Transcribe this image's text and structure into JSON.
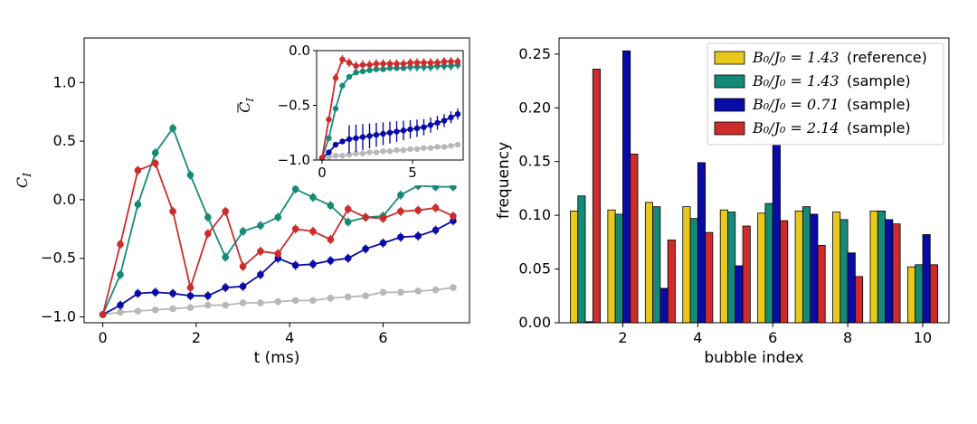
{
  "chart_data": [
    {
      "type": "line",
      "xlabel": "t (ms)",
      "ylabel": "C",
      "ylabel_sub": "I",
      "xlim": [
        -0.4,
        7.85
      ],
      "ylim": [
        -1.05,
        1.38
      ],
      "xticks": [
        "0",
        "2",
        "4",
        "6"
      ],
      "yticks": [
        "−1.0",
        "−0.5",
        "0.0",
        "0.5",
        "1.0"
      ],
      "series": [
        {
          "color": "#b8b8b8",
          "x": [
            0,
            0.375,
            0.75,
            1.125,
            1.5,
            1.875,
            2.25,
            2.625,
            3.0,
            3.375,
            3.75,
            4.125,
            4.5,
            4.875,
            5.25,
            5.625,
            6.0,
            6.375,
            6.75,
            7.125,
            7.5
          ],
          "y": [
            -0.98,
            -0.96,
            -0.95,
            -0.94,
            -0.93,
            -0.92,
            -0.9,
            -0.9,
            -0.88,
            -0.88,
            -0.87,
            -0.86,
            -0.86,
            -0.84,
            -0.83,
            -0.82,
            -0.79,
            -0.79,
            -0.78,
            -0.77,
            -0.75
          ]
        },
        {
          "color": "#0a0aa8",
          "x": [
            0,
            0.375,
            0.75,
            1.125,
            1.5,
            1.875,
            2.25,
            2.625,
            3.0,
            3.375,
            3.75,
            4.125,
            4.5,
            4.875,
            5.25,
            5.625,
            6.0,
            6.375,
            6.75,
            7.125,
            7.5
          ],
          "y": [
            -0.98,
            -0.9,
            -0.8,
            -0.79,
            -0.8,
            -0.82,
            -0.82,
            -0.75,
            -0.74,
            -0.64,
            -0.5,
            -0.56,
            -0.55,
            -0.52,
            -0.5,
            -0.42,
            -0.37,
            -0.32,
            -0.31,
            -0.26,
            -0.18
          ]
        },
        {
          "color": "#168a78",
          "x": [
            0,
            0.375,
            0.75,
            1.125,
            1.5,
            1.875,
            2.25,
            2.625,
            3.0,
            3.375,
            3.75,
            4.125,
            4.5,
            4.875,
            5.25,
            5.625,
            6.0,
            6.375,
            6.75,
            7.125,
            7.5
          ],
          "y": [
            -0.98,
            -0.64,
            -0.04,
            0.4,
            0.61,
            0.21,
            -0.15,
            -0.49,
            -0.27,
            -0.22,
            -0.15,
            0.09,
            0.02,
            -0.05,
            -0.19,
            -0.15,
            -0.14,
            0.04,
            0.12,
            0.11,
            0.11
          ]
        },
        {
          "color": "#cc2c2c",
          "x": [
            0,
            0.375,
            0.75,
            1.125,
            1.5,
            1.875,
            2.25,
            2.625,
            3.0,
            3.375,
            3.75,
            4.125,
            4.5,
            4.875,
            5.25,
            5.625,
            6.0,
            6.375,
            6.75,
            7.125,
            7.5
          ],
          "y": [
            -0.98,
            -0.38,
            0.25,
            0.31,
            -0.1,
            -0.75,
            -0.29,
            -0.1,
            -0.57,
            -0.44,
            -0.46,
            -0.25,
            -0.27,
            -0.34,
            -0.08,
            -0.15,
            -0.16,
            -0.1,
            -0.09,
            -0.07,
            -0.14
          ]
        }
      ]
    },
    {
      "type": "line",
      "ylabel": "C",
      "ylabel_sub": "I",
      "xlim": [
        -0.3,
        7.8
      ],
      "ylim": [
        -1.0,
        0.0
      ],
      "xticks": [
        "0",
        "5"
      ],
      "yticks": [
        "0.0",
        "−0.5",
        "−1.0"
      ],
      "series": [
        {
          "color": "#b8b8b8",
          "x": [
            0,
            0.375,
            0.75,
            1.125,
            1.5,
            1.875,
            2.25,
            2.625,
            3.0,
            3.375,
            3.75,
            4.125,
            4.5,
            4.875,
            5.25,
            5.625,
            6.0,
            6.375,
            6.75,
            7.125,
            7.5
          ],
          "y": [
            -0.98,
            -0.97,
            -0.96,
            -0.96,
            -0.95,
            -0.94,
            -0.94,
            -0.93,
            -0.93,
            -0.92,
            -0.92,
            -0.91,
            -0.91,
            -0.9,
            -0.9,
            -0.89,
            -0.89,
            -0.88,
            -0.88,
            -0.87,
            -0.86
          ]
        },
        {
          "color": "#0a0aa8",
          "x": [
            0,
            0.375,
            0.75,
            1.125,
            1.5,
            1.875,
            2.25,
            2.625,
            3.0,
            3.375,
            3.75,
            4.125,
            4.5,
            4.875,
            5.25,
            5.625,
            6.0,
            6.375,
            6.75,
            7.125,
            7.5
          ],
          "y": [
            -0.98,
            -0.93,
            -0.86,
            -0.83,
            -0.81,
            -0.8,
            -0.79,
            -0.78,
            -0.77,
            -0.76,
            -0.75,
            -0.74,
            -0.73,
            -0.72,
            -0.71,
            -0.7,
            -0.68,
            -0.66,
            -0.64,
            -0.61,
            -0.58
          ]
        },
        {
          "color": "#168a78",
          "x": [
            0,
            0.375,
            0.75,
            1.125,
            1.5,
            1.875,
            2.25,
            2.625,
            3.0,
            3.375,
            3.75,
            4.125,
            4.5,
            4.875,
            5.25,
            5.625,
            6.0,
            6.375,
            6.75,
            7.125,
            7.5
          ],
          "y": [
            -0.98,
            -0.8,
            -0.53,
            -0.32,
            -0.24,
            -0.2,
            -0.19,
            -0.18,
            -0.17,
            -0.17,
            -0.16,
            -0.16,
            -0.16,
            -0.15,
            -0.15,
            -0.15,
            -0.15,
            -0.14,
            -0.14,
            -0.14,
            -0.13
          ]
        },
        {
          "color": "#cc2c2c",
          "x": [
            0,
            0.375,
            0.75,
            1.125,
            1.5,
            1.875,
            2.25,
            2.625,
            3.0,
            3.375,
            3.75,
            4.125,
            4.5,
            4.875,
            5.25,
            5.625,
            6.0,
            6.375,
            6.75,
            7.125,
            7.5
          ],
          "y": [
            -0.98,
            -0.63,
            -0.25,
            -0.08,
            -0.11,
            -0.14,
            -0.13,
            -0.13,
            -0.12,
            -0.12,
            -0.12,
            -0.12,
            -0.12,
            -0.11,
            -0.11,
            -0.11,
            -0.11,
            -0.11,
            -0.1,
            -0.1,
            -0.1
          ]
        }
      ]
    },
    {
      "type": "bar",
      "xlabel": "bubble index",
      "ylabel": "frequency",
      "xlim": [
        0.3,
        10.7
      ],
      "ylim": [
        0.0,
        0.265
      ],
      "xticks": [
        "2",
        "4",
        "6",
        "8",
        "10"
      ],
      "yticks": [
        "0.00",
        "0.05",
        "0.10",
        "0.15",
        "0.20",
        "0.25"
      ],
      "categories": [
        1,
        2,
        3,
        4,
        5,
        6,
        7,
        8,
        9,
        10
      ],
      "legend_position": "top-right",
      "series": [
        {
          "name_math": "B₀/J₀ = 1.43",
          "name_suffix": "(reference)",
          "color": "#e8c81a",
          "values": [
            0.104,
            0.105,
            0.112,
            0.108,
            0.105,
            0.102,
            0.104,
            0.103,
            0.104,
            0.052
          ]
        },
        {
          "name_math": "B₀/J₀ = 1.43",
          "name_suffix": "(sample)",
          "color": "#168a78",
          "values": [
            0.118,
            0.101,
            0.108,
            0.097,
            0.103,
            0.111,
            0.108,
            0.096,
            0.104,
            0.054
          ]
        },
        {
          "name_math": "B₀/J₀ = 0.71",
          "name_suffix": "(sample)",
          "color": "#0a0aa8",
          "values": [
            0.001,
            0.253,
            0.032,
            0.149,
            0.053,
            0.166,
            0.101,
            0.065,
            0.096,
            0.082
          ]
        },
        {
          "name_math": "B₀/J₀ = 2.14",
          "name_suffix": "(sample)",
          "color": "#cc2c2c",
          "values": [
            0.236,
            0.157,
            0.077,
            0.084,
            0.09,
            0.095,
            0.072,
            0.043,
            0.092,
            0.054
          ]
        }
      ]
    }
  ]
}
